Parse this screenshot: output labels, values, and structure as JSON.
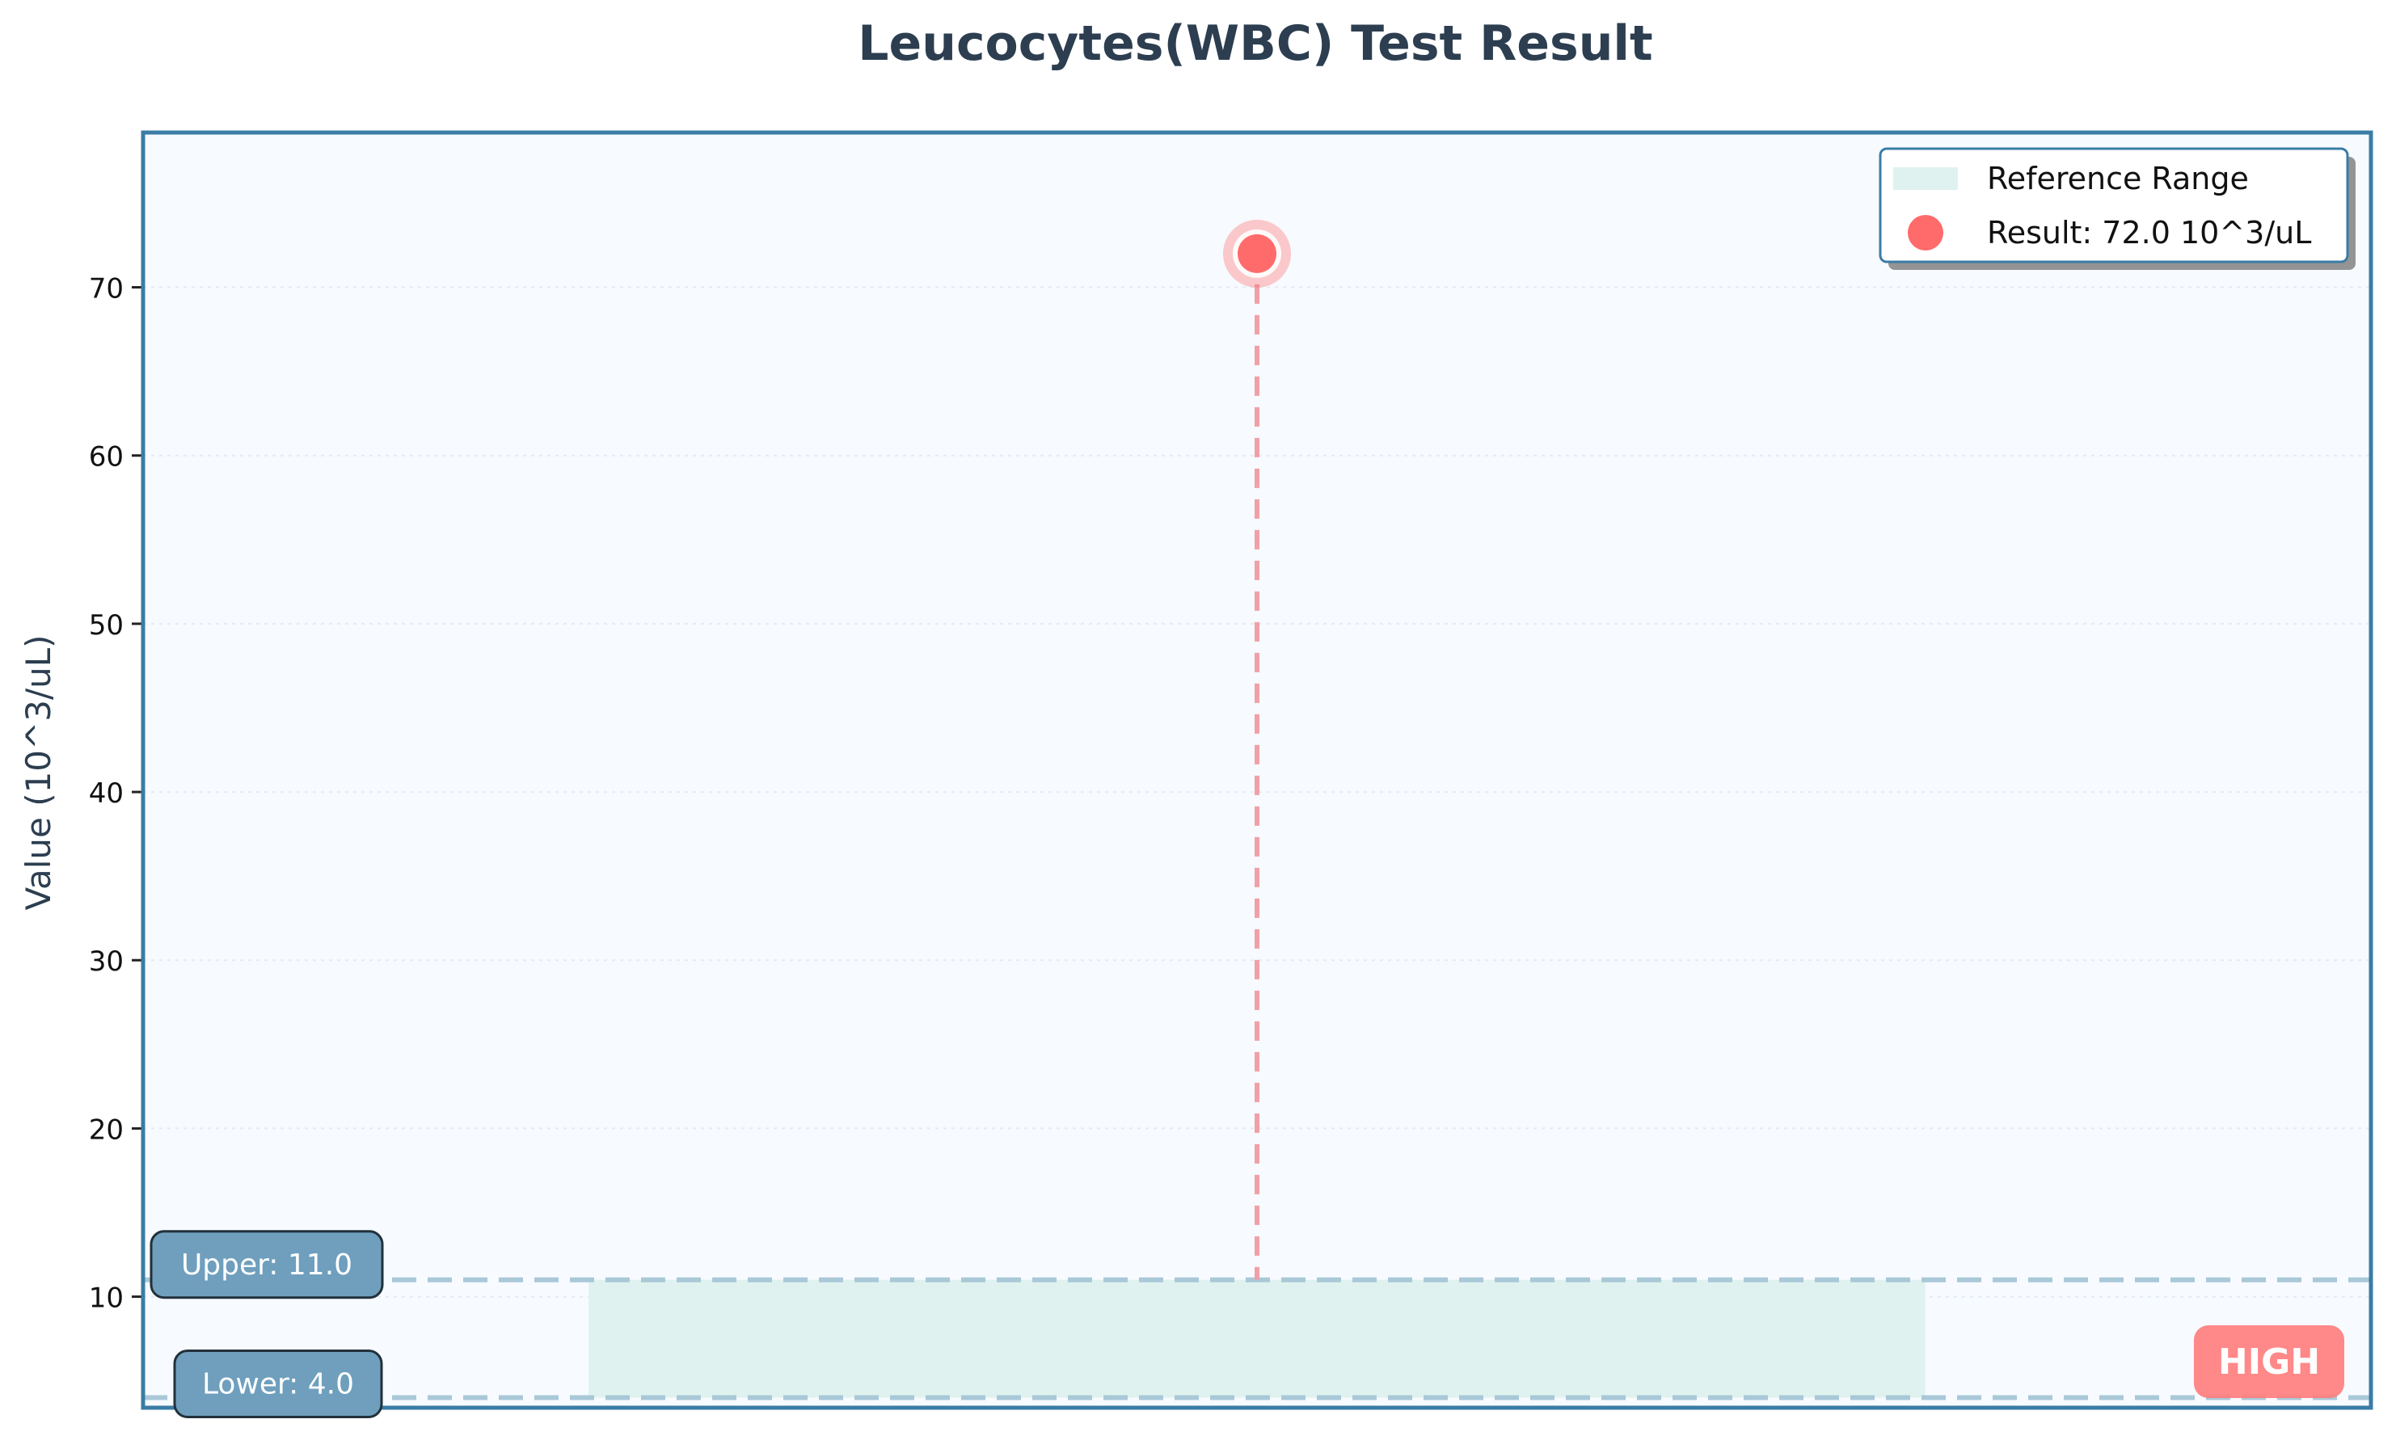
{
  "chart_data": {
    "type": "scatter",
    "title": "Leucocytes(WBC) Test Result",
    "xlabel": "",
    "ylabel": "Value (10^3/uL)",
    "unit": "10^3/uL",
    "ylim": [
      3.4,
      79.2
    ],
    "xlim": [
      0,
      2
    ],
    "yticks": [
      10,
      20,
      30,
      40,
      50,
      60,
      70
    ],
    "grid": true,
    "legend_position": "top-right",
    "reference_range": {
      "lower": 4.0,
      "upper": 11.0,
      "x_start": 0.4,
      "x_end": 1.6
    },
    "result": {
      "x": 1.0,
      "value": 72.0
    },
    "labels": {
      "upper": "Upper: 11.0",
      "lower": "Lower: 4.0",
      "status": "HIGH"
    },
    "legend": [
      {
        "label": "Reference Range",
        "kind": "patch"
      },
      {
        "label": "Result: 72.0 10^3/uL",
        "kind": "marker"
      }
    ],
    "colors": {
      "title": "#2c3e50",
      "axis_frame": "#3a7ca5",
      "plot_bg": "#f7fafe",
      "reference_fill": "#dff2ef",
      "limit_line": "#a9c8d8",
      "result_point": "#ff6b6b",
      "result_stem": "#f0a0a8",
      "label_box": "#6f9fbd",
      "status_badge": "#ff7b7b"
    }
  }
}
